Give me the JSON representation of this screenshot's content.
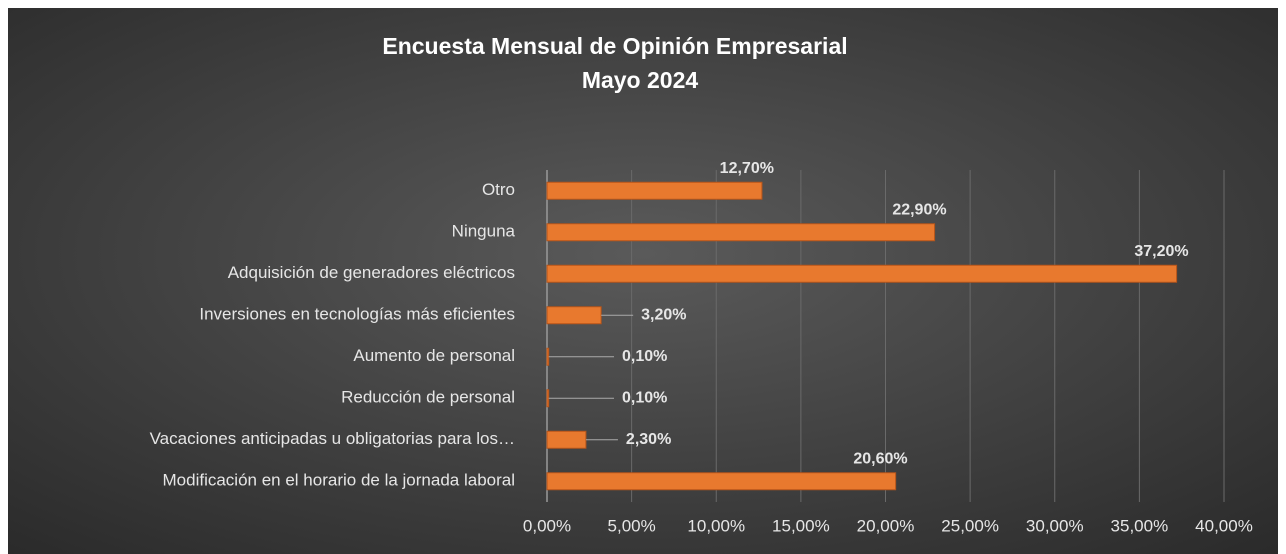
{
  "chart_data": {
    "type": "bar",
    "orientation": "horizontal",
    "title": "Encuesta Mensual de Opinión Empresarial",
    "subtitle": "Mayo 2024",
    "categories": [
      "Otro",
      "Ninguna",
      "Adquisición de generadores eléctricos",
      "Inversiones en tecnologías más eficientes",
      "Aumento de personal",
      "Reducción de personal",
      "Vacaciones anticipadas u obligatorias para los…",
      "Modificación en el horario de la jornada laboral"
    ],
    "values": [
      12.7,
      22.9,
      37.2,
      3.2,
      0.1,
      0.1,
      2.3,
      20.6
    ],
    "value_labels": [
      "12,70%",
      "22,90%",
      "37,20%",
      "3,20%",
      "0,10%",
      "0,10%",
      "2,30%",
      "20,60%"
    ],
    "color": "#e8792e",
    "xlim": [
      0,
      40
    ],
    "xticks": [
      {
        "value": 0,
        "label": "0,00%"
      },
      {
        "value": 5,
        "label": "5,00%"
      },
      {
        "value": 10,
        "label": "10,00%"
      },
      {
        "value": 15,
        "label": "15,00%"
      },
      {
        "value": 20,
        "label": "20,00%"
      },
      {
        "value": 25,
        "label": "25,00%"
      },
      {
        "value": 30,
        "label": "30,00%"
      },
      {
        "value": 35,
        "label": "35,00%"
      },
      {
        "value": 40,
        "label": "40,00%"
      }
    ],
    "grid": true
  }
}
